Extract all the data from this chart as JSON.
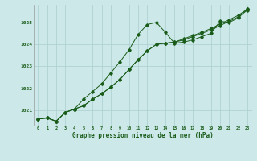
{
  "title": "Graphe pression niveau de la mer (hPa)",
  "bg_color": "#cce8e8",
  "grid_color": "#aacece",
  "line_color": "#1a5c1a",
  "x_values": [
    0,
    1,
    2,
    3,
    4,
    5,
    6,
    7,
    8,
    9,
    10,
    11,
    12,
    13,
    14,
    15,
    16,
    17,
    18,
    19,
    20,
    21,
    22,
    23
  ],
  "line1": [
    1020.6,
    1020.65,
    1020.5,
    1020.9,
    1021.05,
    1021.5,
    1021.85,
    1022.2,
    1022.7,
    1023.2,
    1023.75,
    1024.45,
    1024.9,
    1025.0,
    1024.55,
    1024.05,
    1024.1,
    1024.2,
    1024.35,
    1024.5,
    1025.05,
    1025.0,
    1025.2,
    1025.6
  ],
  "line2": [
    1020.6,
    1020.65,
    1020.5,
    1020.9,
    1021.05,
    1021.2,
    1021.5,
    1021.75,
    1022.05,
    1022.4,
    1022.85,
    1023.3,
    1023.7,
    1024.0,
    1024.05,
    1024.1,
    1024.2,
    1024.35,
    1024.5,
    1024.65,
    1024.85,
    1025.05,
    1025.25,
    1025.55
  ],
  "line3": [
    1020.6,
    1020.65,
    1020.5,
    1020.9,
    1021.05,
    1021.2,
    1021.5,
    1021.75,
    1022.05,
    1022.4,
    1022.85,
    1023.3,
    1023.7,
    1024.0,
    1024.05,
    1024.1,
    1024.25,
    1024.4,
    1024.55,
    1024.72,
    1024.92,
    1025.12,
    1025.32,
    1025.6
  ],
  "ylim": [
    1020.3,
    1025.8
  ],
  "yticks": [
    1021,
    1022,
    1023,
    1024,
    1025
  ],
  "xlim": [
    -0.5,
    23.5
  ],
  "figsize": [
    3.2,
    2.0
  ],
  "dpi": 100
}
